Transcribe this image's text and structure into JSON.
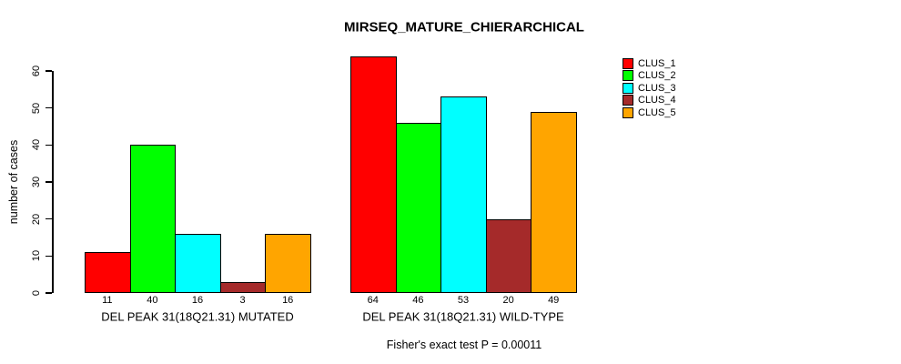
{
  "title": "MIRSEQ_MATURE_CHIERARCHICAL",
  "subtitle": "Fisher's exact test P = 0.00011",
  "ylabel": "number of cases",
  "chart_data": {
    "type": "bar",
    "title": "MIRSEQ_MATURE_CHIERARCHICAL",
    "subtitle": "Fisher's exact test P = 0.00011",
    "xlabel": "",
    "ylabel": "number of cases",
    "ylim": [
      0,
      60
    ],
    "yticks": [
      0,
      10,
      20,
      30,
      40,
      50,
      60
    ],
    "grid": false,
    "legend_position": "top-right",
    "bar_value_labels": true,
    "categories": [
      "DEL PEAK 31(18Q21.31) MUTATED",
      "DEL PEAK 31(18Q21.31) WILD-TYPE"
    ],
    "series": [
      {
        "name": "CLUS_1",
        "color": "#FF0000",
        "values": [
          11,
          64
        ]
      },
      {
        "name": "CLUS_2",
        "color": "#00FF00",
        "values": [
          40,
          46
        ]
      },
      {
        "name": "CLUS_3",
        "color": "#00FFFF",
        "values": [
          16,
          53
        ]
      },
      {
        "name": "CLUS_4",
        "color": "#A52A2A",
        "values": [
          3,
          20
        ]
      },
      {
        "name": "CLUS_5",
        "color": "#FFA500",
        "values": [
          16,
          49
        ]
      }
    ]
  },
  "colors": {
    "background": "#FFFFFF",
    "axis": "#000000",
    "text": "#000000"
  }
}
